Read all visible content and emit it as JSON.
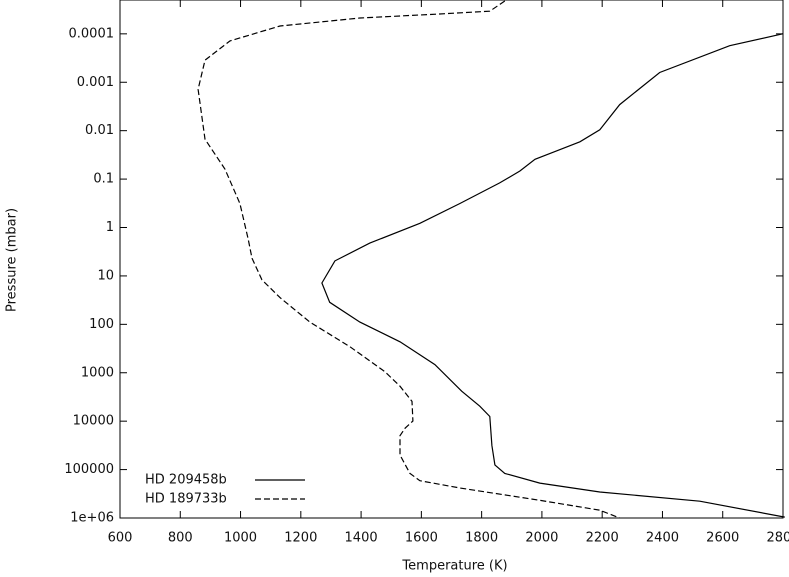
{
  "chart_data": {
    "type": "line",
    "log_y": true,
    "xlabel": "Temperature (K)",
    "ylabel": "Pressure (mbar)",
    "xlim": [
      600,
      2800
    ],
    "ylim": [
      1000000,
      2e-05
    ],
    "xticks": [
      600,
      800,
      1000,
      1200,
      1400,
      1600,
      1800,
      2000,
      2200,
      2400,
      2600,
      2800
    ],
    "yticks": [
      {
        "value": 1000000,
        "label": "1e+06"
      },
      100000,
      10000,
      1000,
      100,
      10,
      1,
      0.1,
      0.01,
      0.001,
      0.0001
    ],
    "legend": "lower left",
    "series": [
      {
        "name": "HD 209458b",
        "color": "#000000",
        "linestyle": "solid",
        "x": [
          2799,
          2623,
          2391,
          2258,
          2192,
          2126,
          2043,
          1977,
          1927,
          1860,
          1728,
          1595,
          1429,
          1313,
          1270,
          1296,
          1396,
          1529,
          1645,
          1734,
          1794,
          1827,
          1834,
          1844,
          1877,
          1993,
          2192,
          2524,
          2806
        ],
        "values": [
          0.0001,
          0.000176,
          0.00063,
          0.0029,
          0.0096,
          0.017,
          0.027,
          0.039,
          0.068,
          0.12,
          0.32,
          0.82,
          2.1,
          4.9,
          14,
          35,
          90,
          230,
          680,
          2400,
          4900,
          8000,
          32000,
          80000,
          120000,
          190000,
          290000,
          450000,
          960000
        ]
      },
      {
        "name": "HD 189733b",
        "color": "#000000",
        "linestyle": "dashed",
        "x": [
          1877,
          1827,
          1661,
          1396,
          1131,
          965,
          882,
          859,
          882,
          948,
          998,
          1025,
          1038,
          1071,
          1131,
          1230,
          1363,
          1479,
          1529,
          1569,
          1572,
          1546,
          1529,
          1529,
          1562,
          1595,
          1728,
          1993,
          2192,
          2258
        ],
        "values": [
          2.1e-05,
          3.4e-05,
          3.9e-05,
          4.7e-05,
          6.9e-05,
          0.00014,
          0.00035,
          0.0014,
          0.015,
          0.062,
          0.32,
          1.7,
          4.3,
          12,
          28,
          90,
          290,
          950,
          1900,
          3900,
          9900,
          14000,
          20000,
          50000,
          120000,
          170000,
          240000,
          430000,
          690000,
          1000000
        ]
      }
    ]
  }
}
